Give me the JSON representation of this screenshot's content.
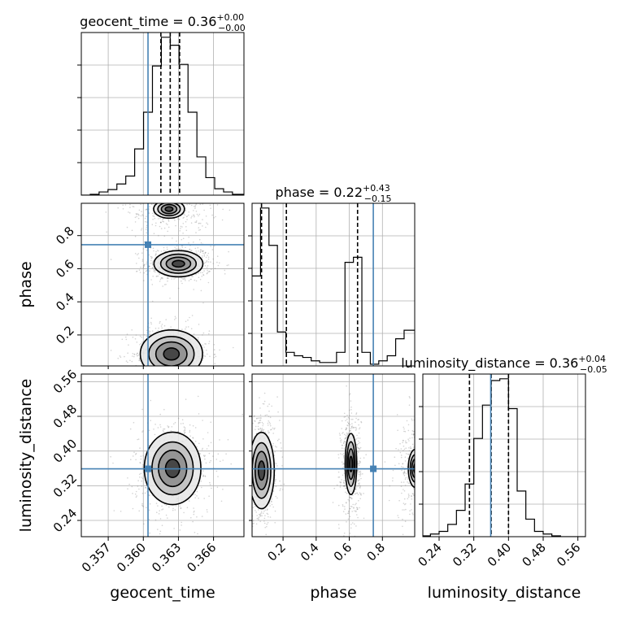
{
  "chart_data": {
    "type": "corner",
    "parameters": [
      "geocent_time",
      "phase",
      "luminosity_distance"
    ],
    "axis_labels": {
      "x": [
        "geocent_time",
        "phase",
        "luminosity_distance"
      ],
      "y": [
        "phase",
        "luminosity_distance"
      ]
    },
    "titles": [
      {
        "param": "geocent_time",
        "text": "geocent_time = 0.36",
        "sup": "+0.00",
        "sub": "−0.00"
      },
      {
        "param": "phase",
        "text": "phase = 0.22",
        "sup": "+0.43",
        "sub": "−0.15"
      },
      {
        "param": "luminosity_distance",
        "text": "luminosity_distance = 0.36",
        "sup": "+0.04",
        "sub": "−0.05"
      }
    ],
    "ranges": {
      "geocent_time": [
        0.3547,
        0.3686
      ],
      "phase": [
        0.013,
        0.995
      ],
      "luminosity_distance": [
        0.2025,
        0.5775
      ]
    },
    "ticks": {
      "geocent_time": [
        {
          "v": 0.357,
          "label": "0.357"
        },
        {
          "v": 0.36,
          "label": "0.360"
        },
        {
          "v": 0.363,
          "label": "0.363"
        },
        {
          "v": 0.366,
          "label": "0.366"
        }
      ],
      "phase": [
        {
          "v": 0.2,
          "label": "0.2"
        },
        {
          "v": 0.4,
          "label": "0.4"
        },
        {
          "v": 0.6,
          "label": "0.6"
        },
        {
          "v": 0.8,
          "label": "0.8"
        }
      ],
      "luminosity_distance": [
        {
          "v": 0.24,
          "label": "0.24"
        },
        {
          "v": 0.32,
          "label": "0.32"
        },
        {
          "v": 0.4,
          "label": "0.40"
        },
        {
          "v": 0.48,
          "label": "0.48"
        },
        {
          "v": 0.56,
          "label": "0.56"
        }
      ]
    },
    "truths": {
      "geocent_time": 0.3604,
      "phase": 0.745,
      "luminosity_distance": 0.359
    },
    "quantiles": {
      "geocent_time": [
        0.3615,
        0.3623,
        0.3631
      ],
      "phase": [
        0.07,
        0.22,
        0.65
      ],
      "luminosity_distance": [
        0.31,
        0.36,
        0.4
      ]
    },
    "histograms": {
      "geocent_time": {
        "edges": [
          0.3547,
          0.35546,
          0.35622,
          0.35698,
          0.35774,
          0.3585,
          0.35926,
          0.36002,
          0.36078,
          0.36154,
          0.3623,
          0.36306,
          0.36382,
          0.36458,
          0.36534,
          0.3661,
          0.36686,
          0.36762,
          0.3686
        ],
        "counts": [
          0,
          0.5,
          2,
          3.5,
          7,
          12,
          29,
          52,
          81,
          99,
          94,
          82,
          52,
          24,
          11,
          4,
          2,
          0.5
        ]
      },
      "phase": {
        "edges": [
          0.013,
          0.064,
          0.115,
          0.166,
          0.217,
          0.268,
          0.319,
          0.37,
          0.421,
          0.472,
          0.523,
          0.574,
          0.625,
          0.676,
          0.727,
          0.778,
          0.829,
          0.88,
          0.931,
          0.995
        ],
        "counts": [
          53,
          93,
          71,
          20,
          8,
          6,
          5,
          3,
          2,
          2,
          8,
          61,
          64,
          8,
          1,
          3,
          6,
          16,
          21
        ]
      },
      "luminosity_distance": {
        "edges": [
          0.2025,
          0.22,
          0.24,
          0.26,
          0.28,
          0.3,
          0.32,
          0.34,
          0.36,
          0.38,
          0.4,
          0.42,
          0.44,
          0.46,
          0.48,
          0.5,
          0.52,
          0.5775
        ],
        "counts": [
          0.5,
          1.5,
          3,
          7,
          15,
          30,
          56,
          75,
          89,
          90,
          73,
          26,
          10,
          3,
          1.5,
          0.5,
          0
        ]
      }
    },
    "pairs": [
      {
        "x": "geocent_time",
        "y": "phase",
        "blobs": [
          {
            "cx": 0.363,
            "cy": 0.63,
            "sx": 0.00095,
            "sy": 0.036,
            "w": 1.0
          },
          {
            "cx": 0.3624,
            "cy": 0.085,
            "sx": 0.0011,
            "sy": 0.06,
            "w": 1.1
          },
          {
            "cx": 0.3622,
            "cy": 0.96,
            "sx": 0.0012,
            "sy": 0.05,
            "w": 0.5
          }
        ]
      },
      {
        "x": "geocent_time",
        "y": "luminosity_distance",
        "blobs": [
          {
            "cx": 0.3625,
            "cy": 0.36,
            "sx": 0.0011,
            "sy": 0.038,
            "w": 1.0
          }
        ]
      },
      {
        "x": "phase",
        "y": "luminosity_distance",
        "blobs": [
          {
            "cx": 0.07,
            "cy": 0.355,
            "sx": 0.035,
            "sy": 0.04,
            "w": 1.0
          },
          {
            "cx": 0.61,
            "cy": 0.37,
            "sx": 0.02,
            "sy": 0.04,
            "w": 0.8
          },
          {
            "cx": 1.0,
            "cy": 0.36,
            "sx": 0.04,
            "sy": 0.04,
            "w": 0.5
          }
        ]
      }
    ],
    "colors": {
      "truth": "#4682b4",
      "contour": "#000000",
      "grid": "#b0b0b0",
      "scatter": "#808080"
    },
    "grid": true
  }
}
